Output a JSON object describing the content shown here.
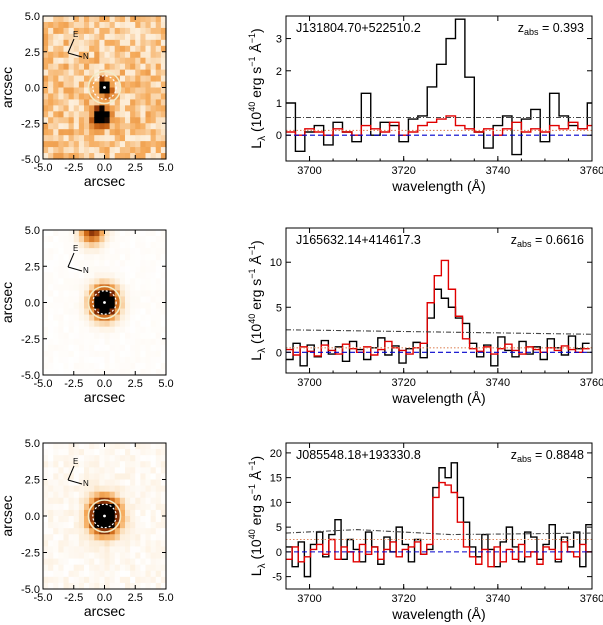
{
  "chart_data": [
    {
      "type": "heatmap",
      "panel": "image-1",
      "xlabel": "arcsec",
      "ylabel": "arcsec",
      "xlim": [
        -5,
        5
      ],
      "ylim": [
        -5,
        5
      ],
      "xticks": [
        "-5.0",
        "-2.5",
        "0.0",
        "2.5",
        "5.0"
      ],
      "yticks": [
        "-5.0",
        "-2.5",
        "0.0",
        "2.5",
        "5.0"
      ],
      "compass": {
        "east": "E",
        "north": "N"
      },
      "sources": [
        {
          "x": 0.0,
          "y": 0.0,
          "sigma_arcsec": 0.35,
          "peak": 1.0
        },
        {
          "x": -0.3,
          "y": -2.0,
          "sigma_arcsec": 0.45,
          "peak": 0.85
        }
      ],
      "noise_level": 0.32,
      "aperture_radii_arcsec": [
        1.3,
        0.95
      ],
      "colormap": "white-orange-black"
    },
    {
      "type": "line",
      "panel": "spectrum-1",
      "label": "J131804.70+522510.2",
      "z_abs": "0.393",
      "xlabel": "wavelength (Å)",
      "ylabel": "L_λ (10^40 erg s^-1 Å^-1)",
      "xlim": [
        3695,
        3760
      ],
      "ylim": [
        -0.8,
        3.7
      ],
      "xticks": [
        3700,
        3720,
        3740,
        3760
      ],
      "yticks": [
        0,
        1,
        2,
        3
      ],
      "series": [
        {
          "color": "#000000",
          "style": "step",
          "x": [
            3695,
            3697,
            3699,
            3701,
            3703,
            3705,
            3707,
            3709,
            3711,
            3713,
            3715,
            3717,
            3719,
            3721,
            3723,
            3725,
            3727,
            3729,
            3731,
            3733,
            3735,
            3737,
            3739,
            3741,
            3743,
            3745,
            3747,
            3749,
            3751,
            3753,
            3755,
            3757,
            3759
          ],
          "values": [
            1.0,
            -0.5,
            0.1,
            0.3,
            -0.3,
            0.4,
            0.1,
            -0.2,
            1.3,
            0.0,
            0.4,
            0.3,
            -0.2,
            0.5,
            0.6,
            1.5,
            2.2,
            3.0,
            3.6,
            1.8,
            0.1,
            -0.4,
            0.3,
            0.6,
            -0.6,
            0.5,
            0.8,
            -0.2,
            1.3,
            0.6,
            0.3,
            0.2,
            1.0
          ]
        },
        {
          "color": "#e00000",
          "style": "step",
          "x": [
            3695,
            3697,
            3699,
            3701,
            3703,
            3705,
            3707,
            3709,
            3711,
            3713,
            3715,
            3717,
            3719,
            3721,
            3723,
            3725,
            3727,
            3729,
            3731,
            3733,
            3735,
            3737,
            3739,
            3741,
            3743,
            3745,
            3747,
            3749,
            3751,
            3753,
            3755,
            3757,
            3759
          ],
          "values": [
            0.1,
            0.0,
            0.2,
            0.1,
            0.0,
            0.2,
            0.1,
            0.0,
            0.3,
            0.2,
            0.1,
            0.4,
            0.0,
            0.1,
            0.3,
            0.4,
            0.5,
            0.6,
            0.3,
            0.2,
            0.1,
            0.2,
            0.0,
            0.2,
            0.4,
            0.1,
            0.2,
            0.1,
            0.3,
            0.2,
            0.4,
            0.2,
            0.3
          ]
        },
        {
          "color": "#444444",
          "style": "dash-dot",
          "x": [
            3695,
            3760
          ],
          "values": [
            0.55,
            0.55
          ]
        },
        {
          "color": "#e08a60",
          "style": "dotted",
          "x": [
            3695,
            3760
          ],
          "values": [
            0.15,
            0.15
          ]
        },
        {
          "color": "#0000cc",
          "style": "dashed",
          "x": [
            3695,
            3760
          ],
          "values": [
            0,
            0
          ]
        }
      ]
    },
    {
      "type": "heatmap",
      "panel": "image-2",
      "xlabel": "arcsec",
      "ylabel": "arcsec",
      "xlim": [
        -5,
        5
      ],
      "ylim": [
        -5,
        5
      ],
      "xticks": [
        "-5.0",
        "-2.5",
        "0.0",
        "2.5",
        "5.0"
      ],
      "yticks": [
        "-5.0",
        "-2.5",
        "0.0",
        "2.5",
        "5.0"
      ],
      "compass": {
        "east": "E",
        "north": "N"
      },
      "sources": [
        {
          "x": 0.0,
          "y": 0.0,
          "sigma_arcsec": 0.75,
          "peak": 1.0
        },
        {
          "x": -1.0,
          "y": 5.0,
          "sigma_arcsec": 0.7,
          "peak": 0.5
        }
      ],
      "noise_level": 0.03,
      "aperture_radii_arcsec": [
        1.3,
        0.95
      ],
      "colormap": "white-orange-black"
    },
    {
      "type": "line",
      "panel": "spectrum-2",
      "label": "J165632.14+414617.3",
      "z_abs": "0.6616",
      "xlabel": "wavelength (Å)",
      "ylabel": "L_λ (10^40 erg s^-1 Å^-1)",
      "xlim": [
        3695,
        3760
      ],
      "ylim": [
        -2.3,
        13.8
      ],
      "xticks": [
        3700,
        3720,
        3740,
        3760
      ],
      "yticks": [
        0,
        5,
        10
      ],
      "series": [
        {
          "color": "#000000",
          "style": "step",
          "x": [
            3695,
            3696.5,
            3698,
            3699.5,
            3701,
            3702.5,
            3704,
            3705.5,
            3707,
            3708.5,
            3710,
            3711.5,
            3713,
            3714.5,
            3716,
            3717.5,
            3719,
            3720.5,
            3722,
            3723.5,
            3725,
            3726.5,
            3728,
            3729.5,
            3731,
            3732.5,
            3734,
            3735.5,
            3737,
            3738.5,
            3740,
            3741.5,
            3743,
            3744.5,
            3746,
            3747.5,
            3749,
            3750.5,
            3752,
            3753.5,
            3755,
            3756.5,
            3758
          ],
          "values": [
            -0.8,
            1.0,
            -1.5,
            0.8,
            -0.5,
            1.3,
            -0.2,
            0.6,
            -1.0,
            1.2,
            0.3,
            -0.8,
            0.5,
            1.6,
            -0.3,
            0.7,
            -1.2,
            0.4,
            1.1,
            -0.6,
            3.8,
            7.0,
            6.0,
            5.0,
            3.8,
            3.2,
            1.0,
            -0.5,
            0.8,
            -1.5,
            1.7,
            0.2,
            -0.5,
            1.2,
            -0.2,
            0.6,
            -0.8,
            1.5,
            0.5,
            -0.3,
            1.8,
            0.4,
            1.0
          ]
        },
        {
          "color": "#e00000",
          "style": "step",
          "x": [
            3695,
            3696.5,
            3698,
            3699.5,
            3701,
            3702.5,
            3704,
            3705.5,
            3707,
            3708.5,
            3710,
            3711.5,
            3713,
            3714.5,
            3716,
            3717.5,
            3719,
            3720.5,
            3722,
            3723.5,
            3725,
            3726.5,
            3728,
            3729.5,
            3731,
            3732.5,
            3734,
            3735.5,
            3737,
            3738.5,
            3740,
            3741.5,
            3743,
            3744.5,
            3746,
            3747.5,
            3749,
            3750.5,
            3752,
            3753.5,
            3755,
            3756.5,
            3758
          ],
          "values": [
            0.3,
            -0.3,
            0.6,
            0.1,
            -0.4,
            0.8,
            0.2,
            -0.2,
            0.9,
            0.4,
            0.0,
            0.6,
            -0.3,
            0.3,
            1.2,
            0.5,
            0.2,
            -0.2,
            0.5,
            1.0,
            5.5,
            8.5,
            10.2,
            7.0,
            4.0,
            1.5,
            0.4,
            0.1,
            0.6,
            -0.2,
            0.4,
            0.9,
            0.2,
            -0.2,
            0.6,
            0.3,
            0.0,
            0.5,
            0.2,
            0.7,
            0.3,
            0.0,
            0.4
          ]
        },
        {
          "color": "#444444",
          "style": "dash-dot",
          "x": [
            3695,
            3760
          ],
          "values": [
            2.5,
            2.0
          ]
        },
        {
          "color": "#e08a60",
          "style": "dotted",
          "x": [
            3695,
            3760
          ],
          "values": [
            0.5,
            0.5
          ]
        },
        {
          "color": "#0000cc",
          "style": "dashed",
          "x": [
            3695,
            3760
          ],
          "values": [
            0,
            0
          ]
        }
      ]
    },
    {
      "type": "heatmap",
      "panel": "image-3",
      "xlabel": "arcsec",
      "ylabel": "arcsec",
      "xlim": [
        -5,
        5
      ],
      "ylim": [
        -5,
        5
      ],
      "xticks": [
        "-5.0",
        "-2.5",
        "0.0",
        "2.5",
        "5.0"
      ],
      "yticks": [
        "-5.0",
        "-2.5",
        "0.0",
        "2.5",
        "5.0"
      ],
      "compass": {
        "east": "E",
        "north": "N"
      },
      "sources": [
        {
          "x": 0.0,
          "y": 0.0,
          "sigma_arcsec": 0.85,
          "peak": 1.0
        }
      ],
      "noise_level": 0.1,
      "aperture_radii_arcsec": [
        1.3,
        0.95
      ],
      "colormap": "white-orange-black"
    },
    {
      "type": "line",
      "panel": "spectrum-3",
      "label": "J085548.18+193330.8",
      "z_abs": "0.8848",
      "xlabel": "wavelength (Å)",
      "ylabel": "L_λ (10^40 erg s^-1 Å^-1)",
      "xlim": [
        3695,
        3760
      ],
      "ylim": [
        -7.5,
        22
      ],
      "xticks": [
        3700,
        3720,
        3740,
        3760
      ],
      "yticks": [
        -5,
        0,
        5,
        10,
        15,
        20
      ],
      "series": [
        {
          "color": "#000000",
          "style": "step",
          "x": [
            3695,
            3696.3,
            3697.6,
            3698.9,
            3700.2,
            3701.5,
            3702.8,
            3704.1,
            3705.4,
            3706.7,
            3708,
            3709.3,
            3710.6,
            3711.9,
            3713.2,
            3714.5,
            3715.8,
            3717.1,
            3718.4,
            3719.7,
            3721,
            3722.3,
            3723.6,
            3724.9,
            3726.2,
            3727.5,
            3728.8,
            3730.1,
            3731.4,
            3732.7,
            3734,
            3735.3,
            3736.6,
            3737.9,
            3739.2,
            3740.5,
            3741.8,
            3743.1,
            3744.4,
            3745.7,
            3747,
            3748.3,
            3749.6,
            3750.9,
            3752.2,
            3753.5,
            3754.8,
            3756.1,
            3757.4,
            3758.7
          ],
          "values": [
            1.0,
            -3.0,
            2.0,
            -5.0,
            1.5,
            4.0,
            -1.0,
            3.5,
            6.5,
            -1.5,
            2.5,
            0.5,
            -2.0,
            4.0,
            1.0,
            -2.5,
            3.0,
            0.0,
            5.0,
            1.5,
            -2.0,
            2.5,
            -0.5,
            0.5,
            13.0,
            17.0,
            15.0,
            18.0,
            11.0,
            6.0,
            1.0,
            -1.0,
            3.5,
            0.5,
            -3.0,
            2.0,
            5.0,
            1.0,
            -2.0,
            4.0,
            3.0,
            -1.5,
            1.5,
            5.5,
            -2.0,
            3.0,
            1.0,
            4.0,
            -3.0,
            5.5
          ]
        },
        {
          "color": "#e00000",
          "style": "step",
          "x": [
            3695,
            3696.3,
            3697.6,
            3698.9,
            3700.2,
            3701.5,
            3702.8,
            3704.1,
            3705.4,
            3706.7,
            3708,
            3709.3,
            3710.6,
            3711.9,
            3713.2,
            3714.5,
            3715.8,
            3717.1,
            3718.4,
            3719.7,
            3721,
            3722.3,
            3723.6,
            3724.9,
            3726.2,
            3727.5,
            3728.8,
            3730.1,
            3731.4,
            3732.7,
            3734,
            3735.3,
            3736.6,
            3737.9,
            3739.2,
            3740.5,
            3741.8,
            3743.1,
            3744.4,
            3745.7,
            3747,
            3748.3,
            3749.6,
            3750.9,
            3752.2,
            3753.5,
            3754.8,
            3756.1,
            3757.4,
            3758.7
          ],
          "values": [
            -1.5,
            1.0,
            -2.0,
            -1.0,
            0.5,
            1.5,
            -0.5,
            2.5,
            -1.5,
            1.0,
            0.0,
            -2.0,
            1.5,
            -0.5,
            1.0,
            -1.5,
            0.5,
            2.0,
            -1.0,
            0.5,
            1.0,
            2.0,
            -0.5,
            1.5,
            11.0,
            14.0,
            13.5,
            12.0,
            6.0,
            1.0,
            -1.0,
            -2.5,
            0.5,
            -3.0,
            1.0,
            -2.0,
            0.5,
            -1.5,
            1.5,
            -1.0,
            0.0,
            -2.5,
            1.0,
            0.5,
            -1.5,
            2.0,
            0.0,
            -1.0,
            1.5,
            0.0
          ]
        },
        {
          "color": "#444444",
          "style": "dash-dot",
          "x": [
            3695,
            3710,
            3730,
            3760
          ],
          "values": [
            3.8,
            4.5,
            3.5,
            3.8
          ]
        },
        {
          "color": "#e08a60",
          "style": "dotted",
          "x": [
            3695,
            3760
          ],
          "values": [
            2.5,
            2.5
          ]
        },
        {
          "color": "#0000cc",
          "style": "dashed",
          "x": [
            3695,
            3760
          ],
          "values": [
            0,
            0
          ]
        }
      ]
    }
  ]
}
